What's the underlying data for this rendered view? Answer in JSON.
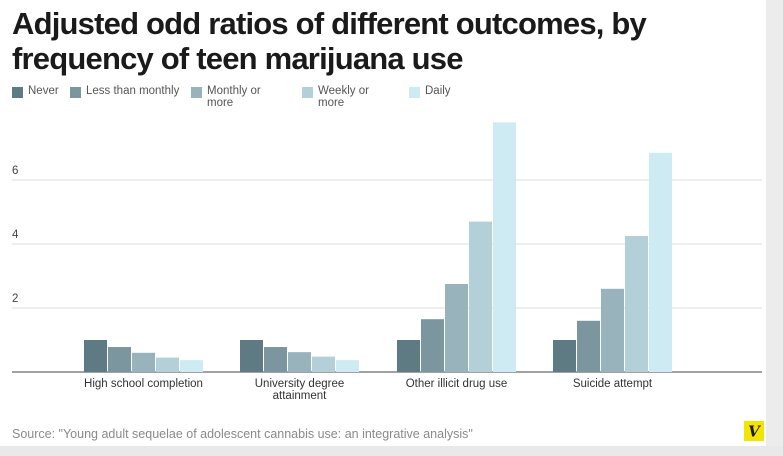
{
  "title": "Adjusted odd ratios of different outcomes, by frequency of teen marijuana use",
  "source": "Source: \"Young adult sequelae of adolescent cannabis use: an integrative analysis\"",
  "logo_text": "V",
  "colors": {
    "never": "#5e7a82",
    "less_than_monthly": "#7b969e",
    "monthly_or_more": "#98b3bb",
    "weekly_or_more": "#b3d0d8",
    "daily": "#ceeaf2",
    "grid": "#dddddd",
    "logo_bg": "#f2e600"
  },
  "chart_data": {
    "type": "bar",
    "title": "Adjusted odd ratios of different outcomes, by frequency of teen marijuana use",
    "categories": [
      [
        "High school completion"
      ],
      [
        "University degree",
        "attainment"
      ],
      [
        "Other illicit drug use"
      ],
      [
        "Suicide attempt"
      ]
    ],
    "series": [
      {
        "name": "Never",
        "values": [
          1.0,
          1.0,
          1.0,
          1.0
        ]
      },
      {
        "name": "Less than monthly",
        "values": [
          0.78,
          0.78,
          1.65,
          1.6
        ]
      },
      {
        "name": "Monthly or more",
        "values": [
          0.6,
          0.62,
          2.75,
          2.6
        ]
      },
      {
        "name": "Weekly or more",
        "values": [
          0.45,
          0.48,
          4.7,
          4.25
        ]
      },
      {
        "name": "Daily",
        "values": [
          0.37,
          0.37,
          7.8,
          6.85
        ]
      }
    ],
    "legend_labels": [
      [
        "Never"
      ],
      [
        "Less than monthly"
      ],
      [
        "Monthly or",
        "more"
      ],
      [
        "Weekly or",
        "more"
      ],
      [
        "Daily"
      ]
    ],
    "yticks": [
      2,
      4,
      6
    ],
    "ylim": [
      0,
      8
    ],
    "grid": true,
    "legend_position": "top"
  }
}
